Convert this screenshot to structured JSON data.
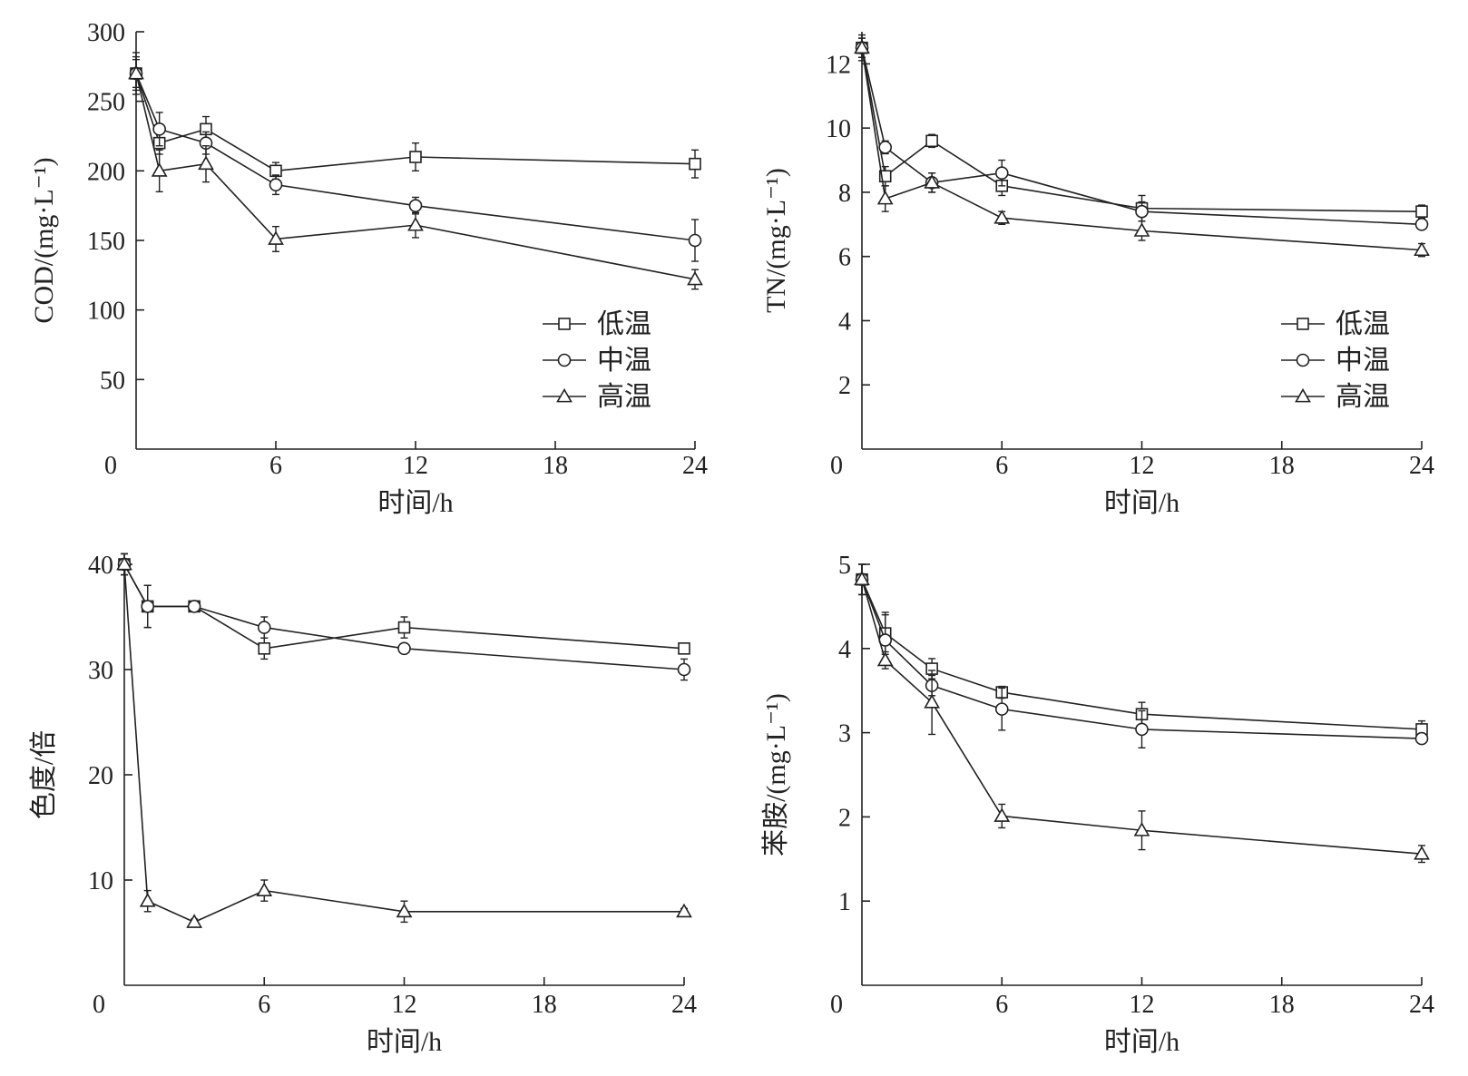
{
  "chart_data": [
    {
      "type": "line",
      "xlabel": "时间/h",
      "ylabel": "COD/(mg·L⁻¹)",
      "xlim": [
        0,
        24
      ],
      "ylim": [
        0,
        300
      ],
      "xticks": [
        "0",
        "6",
        "12",
        "18",
        "24"
      ],
      "yticks": [
        "50",
        "100",
        "150",
        "200",
        "250",
        "300"
      ],
      "legend_position": "lower-right",
      "x": [
        0,
        1,
        3,
        6,
        12,
        24
      ],
      "series": [
        {
          "name": "低温",
          "marker": "square",
          "values": [
            270,
            220,
            230,
            200,
            210,
            205
          ],
          "errors": [
            15,
            8,
            9,
            6,
            10,
            10
          ]
        },
        {
          "name": "中温",
          "marker": "circle",
          "values": [
            270,
            230,
            220,
            190,
            175,
            150
          ],
          "errors": [
            12,
            12,
            8,
            7,
            6,
            15
          ]
        },
        {
          "name": "高温",
          "marker": "triangle",
          "values": [
            270,
            200,
            205,
            151,
            161,
            122
          ],
          "errors": [
            10,
            15,
            13,
            9,
            9,
            7
          ]
        }
      ]
    },
    {
      "type": "line",
      "xlabel": "时间/h",
      "ylabel": "TN/(mg·L⁻¹)",
      "xlim": [
        0,
        24
      ],
      "ylim": [
        0,
        13
      ],
      "xticks": [
        "0",
        "6",
        "12",
        "18",
        "24"
      ],
      "yticks": [
        "2",
        "4",
        "6",
        "8",
        "10",
        "12"
      ],
      "legend_position": "lower-right",
      "x": [
        0,
        1,
        3,
        6,
        12,
        24
      ],
      "series": [
        {
          "name": "低温",
          "marker": "square",
          "values": [
            12.5,
            8.5,
            9.6,
            8.2,
            7.5,
            7.4
          ],
          "errors": [
            0.4,
            0.3,
            0.2,
            0.3,
            0.4,
            0.2
          ]
        },
        {
          "name": "中温",
          "marker": "circle",
          "values": [
            12.5,
            9.4,
            8.3,
            8.6,
            7.4,
            7.0
          ],
          "errors": [
            0.3,
            0.2,
            0.3,
            0.4,
            0.3,
            0.1
          ]
        },
        {
          "name": "高温",
          "marker": "triangle",
          "values": [
            12.5,
            7.8,
            8.3,
            7.2,
            6.8,
            6.2
          ],
          "errors": [
            0.3,
            0.4,
            0.3,
            0.2,
            0.3,
            0.2
          ]
        }
      ]
    },
    {
      "type": "line",
      "xlabel": "时间/h",
      "ylabel": "色度/倍",
      "xlim": [
        0,
        24
      ],
      "ylim": [
        0,
        40
      ],
      "xticks": [
        "0",
        "6",
        "12",
        "18",
        "24"
      ],
      "yticks": [
        "10",
        "20",
        "30",
        "40"
      ],
      "x": [
        0,
        1,
        3,
        6,
        12,
        24
      ],
      "series": [
        {
          "name": "低温",
          "marker": "square",
          "values": [
            40,
            36,
            36,
            32,
            34,
            32
          ],
          "errors": [
            1,
            2,
            0.3,
            1,
            1,
            0.3
          ]
        },
        {
          "name": "中温",
          "marker": "circle",
          "values": [
            40,
            36,
            36,
            34,
            32,
            30
          ],
          "errors": [
            1,
            2,
            0.3,
            1,
            0.3,
            1
          ]
        },
        {
          "name": "高温",
          "marker": "triangle",
          "values": [
            40,
            8,
            6,
            9,
            7,
            7
          ],
          "errors": [
            1,
            1,
            0.3,
            1,
            1,
            0.3
          ]
        }
      ]
    },
    {
      "type": "line",
      "xlabel": "时间/h",
      "ylabel": "苯胺/(mg·L⁻¹)",
      "xlim": [
        0,
        24
      ],
      "ylim": [
        0,
        5
      ],
      "xticks": [
        "0",
        "6",
        "12",
        "18",
        "24"
      ],
      "yticks": [
        "1",
        "2",
        "3",
        "4",
        "5"
      ],
      "x": [
        0,
        1,
        3,
        6,
        12,
        24
      ],
      "series": [
        {
          "name": "低温",
          "marker": "square",
          "values": [
            4.82,
            4.18,
            3.76,
            3.48,
            3.22,
            3.04
          ],
          "errors": [
            0.18,
            0.25,
            0.12,
            0.07,
            0.14,
            0.1
          ]
        },
        {
          "name": "中温",
          "marker": "circle",
          "values": [
            4.82,
            4.1,
            3.56,
            3.28,
            3.04,
            2.93
          ],
          "errors": [
            0.18,
            0.3,
            0.12,
            0.25,
            0.22,
            0.05
          ]
        },
        {
          "name": "高温",
          "marker": "triangle",
          "values": [
            4.82,
            3.86,
            3.36,
            2.01,
            1.84,
            1.56
          ],
          "errors": [
            0.18,
            0.1,
            0.38,
            0.14,
            0.23,
            0.1
          ]
        }
      ]
    }
  ]
}
